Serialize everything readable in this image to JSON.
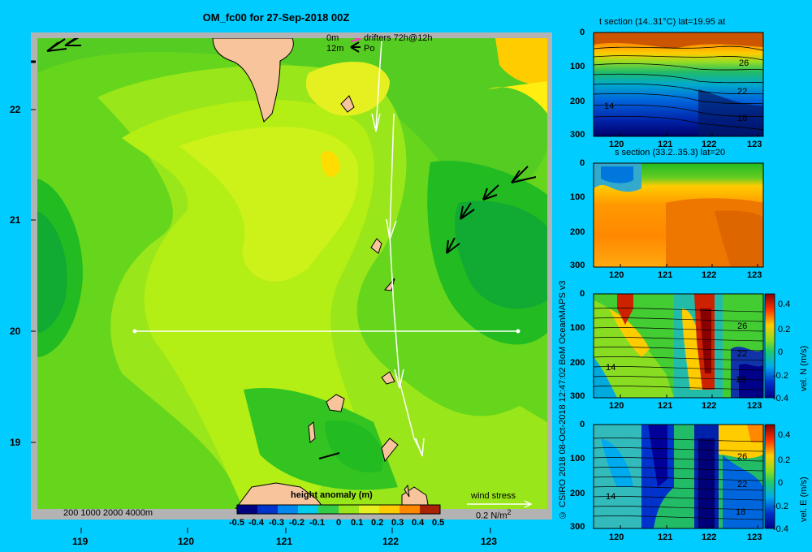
{
  "main": {
    "title": "OM_fc00 for 27-Sep-2018 00Z",
    "legend_lines": [
      {
        "left": "0m",
        "right": "drifters 72h@12h"
      },
      {
        "left": "12m",
        "right": "Po"
      }
    ],
    "depth_contours_label": "200  1000  2000  4000m",
    "wind_stress_label": "wind stress",
    "wind_stress_scale": "0.2 N/m",
    "wind_stress_exp": "2",
    "colorbar_title": "height anomaly (m)",
    "colors": {
      "background": "#00ccff",
      "land": "#f7c49b",
      "frame": "#b3b3b3"
    }
  },
  "side": {
    "credit": "© CSIRO 2018  08-Oct-2018 12:47:02 BoM OceanMAPS v3",
    "panels": [
      {
        "title": "t section (14..31°C) lat=19.95 at",
        "colorbar_label": "",
        "contour_labels": [
          "26",
          "22",
          "14",
          "18"
        ]
      },
      {
        "title": "s section (33.2..35.3) lat=20",
        "colorbar_label": "",
        "contour_labels": []
      },
      {
        "title": "",
        "colorbar_label": "vel. N (m/s)",
        "contour_labels": [
          "26",
          "22",
          "14",
          "18"
        ]
      },
      {
        "title": "",
        "colorbar_label": "vel. E (m/s)",
        "contour_labels": [
          "26",
          "22",
          "14",
          "18"
        ]
      }
    ]
  },
  "chart_data": [
    {
      "type": "heatmap",
      "title": "OM_fc00 for 27-Sep-2018 00Z",
      "xlabel": "",
      "ylabel": "",
      "x_ticks": [
        "119",
        "120",
        "121",
        "122",
        "123"
      ],
      "y_ticks": [
        "22",
        "21",
        "20",
        "19"
      ],
      "xlim": [
        118.5,
        123.5
      ],
      "ylim": [
        18.3,
        22.7
      ],
      "colorbar": {
        "label": "height anomaly (m)",
        "range": [
          -0.5,
          0.5
        ],
        "ticks": [
          "-0.5",
          "-0.4",
          "-0.3",
          "-0.2",
          "-0.1",
          "0",
          "0.1",
          "0.2",
          "0.3",
          "0.4",
          "0.5"
        ]
      },
      "section_line": {
        "lat": 20,
        "lon_start": 119.5,
        "lon_end": 123.2
      },
      "wind_vectors": [
        {
          "lon": 118.7,
          "lat": 22.55
        },
        {
          "lon": 119.0,
          "lat": 22.62
        },
        {
          "lon": 122.6,
          "lat": 20.75
        },
        {
          "lon": 122.7,
          "lat": 20.9
        },
        {
          "lon": 122.9,
          "lat": 21.2
        },
        {
          "lon": 123.1,
          "lat": 21.4
        }
      ]
    },
    {
      "type": "heatmap",
      "title": "t section (14..31°C) lat=19.95 at",
      "x_ticks": [
        "120",
        "121",
        "122",
        "123"
      ],
      "y_ticks": [
        "0",
        "100",
        "200",
        "300"
      ],
      "xlim": [
        119.5,
        123.2
      ],
      "ylim": [
        300,
        0
      ],
      "contours": [
        "26",
        "22",
        "14",
        "18"
      ]
    },
    {
      "type": "heatmap",
      "title": "s section (33.2..35.3) lat=20",
      "x_ticks": [
        "120",
        "121",
        "122",
        "123"
      ],
      "y_ticks": [
        "0",
        "100",
        "200",
        "300"
      ],
      "xlim": [
        119.5,
        123.2
      ],
      "ylim": [
        300,
        0
      ]
    },
    {
      "type": "heatmap",
      "title": "",
      "x_ticks": [
        "120",
        "121",
        "122",
        "123"
      ],
      "y_ticks": [
        "0",
        "100",
        "200",
        "300"
      ],
      "xlim": [
        119.5,
        123.2
      ],
      "ylim": [
        300,
        0
      ],
      "colorbar": {
        "label": "vel. N (m/s)",
        "range": [
          -0.4,
          0.4
        ],
        "ticks": [
          "0.4",
          "0.2",
          "0",
          "-0.2",
          "-0.4"
        ]
      },
      "contours": [
        "26",
        "22",
        "14",
        "18"
      ]
    },
    {
      "type": "heatmap",
      "title": "",
      "x_ticks": [
        "120",
        "121",
        "122",
        "123"
      ],
      "y_ticks": [
        "0",
        "100",
        "200",
        "300"
      ],
      "xlim": [
        119.5,
        123.2
      ],
      "ylim": [
        300,
        0
      ],
      "colorbar": {
        "label": "vel. E (m/s)",
        "range": [
          -0.4,
          0.4
        ],
        "ticks": [
          "0.4",
          "0.2",
          "0",
          "-0.2",
          "-0.4"
        ]
      },
      "contours": [
        "26",
        "22",
        "14",
        "18"
      ]
    }
  ]
}
